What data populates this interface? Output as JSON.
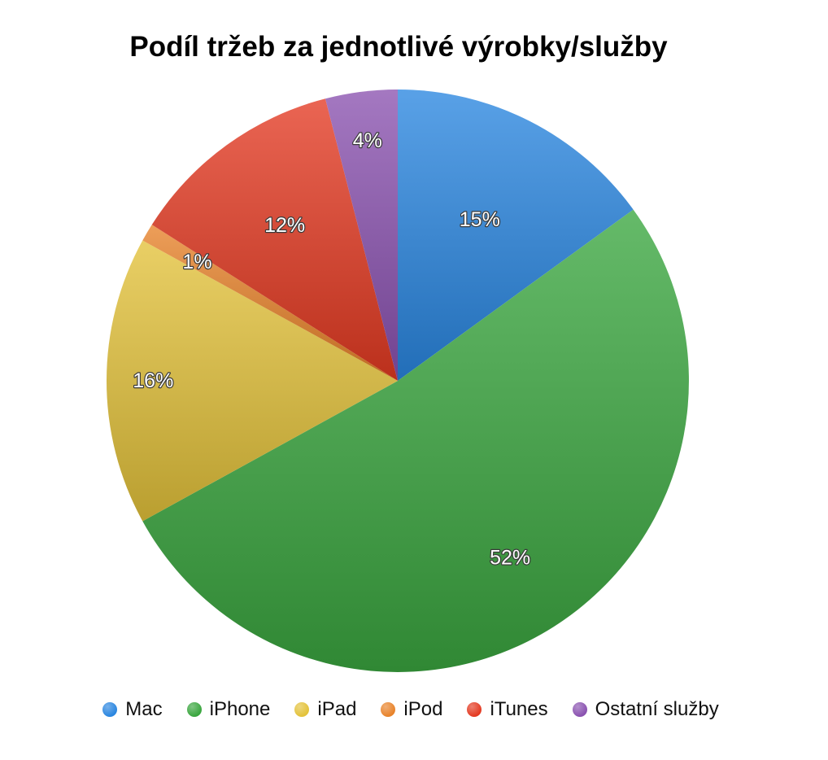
{
  "chart_data": {
    "type": "pie",
    "title": "Podíl tržeb za jednotlivé výrobky/služby",
    "categories": [
      "Mac",
      "iPhone",
      "iPad",
      "iPod",
      "iTunes",
      "Ostatní služby"
    ],
    "values": [
      15,
      52,
      16,
      1,
      12,
      4
    ],
    "value_labels": [
      "15%",
      "52%",
      "16%",
      "1%",
      "12%",
      "4%"
    ],
    "colors": [
      "#2a86e0",
      "#3aa63f",
      "#e3c23a",
      "#e8832a",
      "#e43a22",
      "#8a52b0"
    ],
    "start_angle": "top (12 o'clock)",
    "direction": "clockwise",
    "legend_placement": "bottom"
  }
}
